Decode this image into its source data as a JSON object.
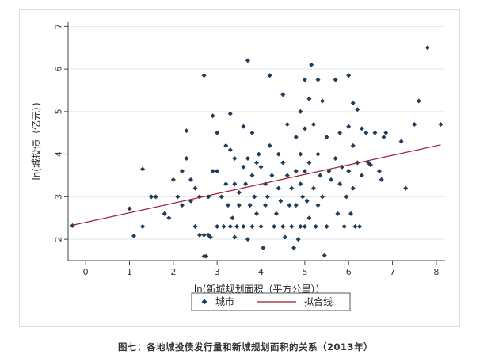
{
  "caption": "图七：各地城投债发行量和新城规划面积的关系（2013年）",
  "colors": {
    "plot_bg": "#ffffff",
    "outer_bg": "#ffffff",
    "grid": "#e3e8ea",
    "points": "#1f3c5a",
    "fit_line": "#9b1f2e",
    "axis": "#444444"
  },
  "chart_data": {
    "type": "scatter",
    "xlabel": "ln(新城规划面积（平方公里）)",
    "ylabel": "ln(城投债（亿元）)",
    "xlim": [
      -0.4,
      8.2
    ],
    "ylim": [
      1.5,
      7.1
    ],
    "xticks": [
      "0",
      "1",
      "2",
      "3",
      "4",
      "5",
      "6",
      "7",
      "8"
    ],
    "yticks": [
      "2",
      "3",
      "4",
      "5",
      "6",
      "7"
    ],
    "grid": true,
    "legend_position": "bottom",
    "legend": [
      "城市",
      "拟合线"
    ],
    "fit_line": {
      "x": [
        -0.3,
        8.1
      ],
      "y": [
        2.33,
        4.22
      ]
    },
    "series": [
      {
        "name": "城市",
        "points": [
          [
            -0.3,
            2.32
          ],
          [
            1.0,
            2.72
          ],
          [
            1.1,
            2.08
          ],
          [
            1.3,
            3.65
          ],
          [
            1.3,
            2.3
          ],
          [
            1.5,
            3.0
          ],
          [
            1.6,
            3.0
          ],
          [
            1.8,
            2.6
          ],
          [
            1.9,
            2.5
          ],
          [
            2.0,
            3.4
          ],
          [
            2.1,
            3.0
          ],
          [
            2.2,
            3.6
          ],
          [
            2.2,
            2.8
          ],
          [
            2.3,
            4.55
          ],
          [
            2.3,
            3.9
          ],
          [
            2.4,
            2.9
          ],
          [
            2.4,
            3.4
          ],
          [
            2.5,
            3.2
          ],
          [
            2.5,
            2.3
          ],
          [
            2.6,
            3.0
          ],
          [
            2.6,
            2.1
          ],
          [
            2.7,
            5.85
          ],
          [
            2.7,
            1.6
          ],
          [
            2.7,
            2.1
          ],
          [
            2.75,
            1.6
          ],
          [
            2.8,
            3.0
          ],
          [
            2.8,
            2.1
          ],
          [
            2.85,
            2.05
          ],
          [
            2.9,
            4.9
          ],
          [
            2.9,
            3.6
          ],
          [
            3.0,
            4.5
          ],
          [
            3.0,
            3.6
          ],
          [
            3.0,
            2.3
          ],
          [
            3.1,
            3.0
          ],
          [
            3.15,
            2.3
          ],
          [
            3.2,
            4.2
          ],
          [
            3.2,
            3.3
          ],
          [
            3.25,
            2.8
          ],
          [
            3.3,
            4.95
          ],
          [
            3.3,
            4.1
          ],
          [
            3.3,
            2.3
          ],
          [
            3.35,
            2.5
          ],
          [
            3.4,
            3.9
          ],
          [
            3.4,
            3.3
          ],
          [
            3.4,
            2.05
          ],
          [
            3.45,
            2.3
          ],
          [
            3.5,
            3.1
          ],
          [
            3.5,
            2.8
          ],
          [
            3.6,
            4.65
          ],
          [
            3.6,
            3.7
          ],
          [
            3.6,
            2.3
          ],
          [
            3.65,
            3.3
          ],
          [
            3.7,
            6.2
          ],
          [
            3.7,
            3.9
          ],
          [
            3.7,
            2.0
          ],
          [
            3.75,
            2.8
          ],
          [
            3.8,
            4.5
          ],
          [
            3.8,
            3.5
          ],
          [
            3.8,
            2.3
          ],
          [
            3.85,
            3.0
          ],
          [
            3.9,
            3.8
          ],
          [
            3.9,
            2.6
          ],
          [
            3.95,
            4.0
          ],
          [
            4.0,
            3.7
          ],
          [
            4.0,
            2.3
          ],
          [
            4.05,
            1.8
          ],
          [
            4.1,
            3.3
          ],
          [
            4.1,
            2.8
          ],
          [
            4.15,
            3.0
          ],
          [
            4.2,
            5.85
          ],
          [
            4.2,
            4.2
          ],
          [
            4.25,
            3.5
          ],
          [
            4.3,
            2.3
          ],
          [
            4.35,
            2.6
          ],
          [
            4.4,
            4.0
          ],
          [
            4.4,
            3.2
          ],
          [
            4.45,
            2.9
          ],
          [
            4.5,
            5.4
          ],
          [
            4.5,
            3.8
          ],
          [
            4.5,
            2.3
          ],
          [
            4.55,
            2.05
          ],
          [
            4.6,
            4.7
          ],
          [
            4.6,
            3.5
          ],
          [
            4.65,
            2.8
          ],
          [
            4.7,
            3.2
          ],
          [
            4.7,
            2.3
          ],
          [
            4.75,
            1.8
          ],
          [
            4.8,
            4.4
          ],
          [
            4.8,
            3.6
          ],
          [
            4.8,
            2.8
          ],
          [
            4.85,
            2.0
          ],
          [
            4.9,
            5.0
          ],
          [
            4.9,
            4.0
          ],
          [
            4.9,
            3.3
          ],
          [
            4.9,
            2.3
          ],
          [
            4.95,
            3.0
          ],
          [
            5.0,
            5.75
          ],
          [
            5.0,
            4.6
          ],
          [
            5.0,
            3.6
          ],
          [
            5.0,
            2.3
          ],
          [
            5.05,
            2.9
          ],
          [
            5.1,
            5.3
          ],
          [
            5.1,
            3.8
          ],
          [
            5.1,
            2.5
          ],
          [
            5.15,
            6.1
          ],
          [
            5.2,
            4.7
          ],
          [
            5.2,
            3.2
          ],
          [
            5.25,
            2.3
          ],
          [
            5.3,
            5.75
          ],
          [
            5.3,
            4.0
          ],
          [
            5.3,
            2.8
          ],
          [
            5.35,
            3.5
          ],
          [
            5.4,
            5.25
          ],
          [
            5.4,
            3.0
          ],
          [
            5.45,
            1.62
          ],
          [
            5.5,
            4.4
          ],
          [
            5.5,
            2.3
          ],
          [
            5.55,
            3.6
          ],
          [
            5.6,
            3.4
          ],
          [
            5.7,
            5.75
          ],
          [
            5.7,
            3.9
          ],
          [
            5.75,
            2.6
          ],
          [
            5.8,
            4.5
          ],
          [
            5.8,
            3.3
          ],
          [
            5.85,
            3.7
          ],
          [
            5.9,
            2.3
          ],
          [
            5.95,
            3.0
          ],
          [
            6.0,
            5.85
          ],
          [
            6.0,
            4.65
          ],
          [
            6.0,
            3.6
          ],
          [
            6.05,
            2.6
          ],
          [
            6.1,
            5.2
          ],
          [
            6.1,
            4.2
          ],
          [
            6.1,
            3.2
          ],
          [
            6.15,
            2.3
          ],
          [
            6.2,
            5.05
          ],
          [
            6.2,
            3.8
          ],
          [
            6.25,
            2.3
          ],
          [
            6.3,
            4.6
          ],
          [
            6.3,
            3.5
          ],
          [
            6.4,
            4.5
          ],
          [
            6.45,
            3.8
          ],
          [
            6.5,
            3.75
          ],
          [
            6.6,
            4.5
          ],
          [
            6.7,
            3.6
          ],
          [
            6.75,
            3.4
          ],
          [
            6.8,
            4.4
          ],
          [
            6.85,
            4.5
          ],
          [
            7.2,
            4.3
          ],
          [
            7.3,
            3.2
          ],
          [
            7.5,
            4.7
          ],
          [
            7.6,
            5.25
          ],
          [
            7.8,
            6.5
          ],
          [
            8.1,
            4.7
          ]
        ]
      }
    ]
  }
}
